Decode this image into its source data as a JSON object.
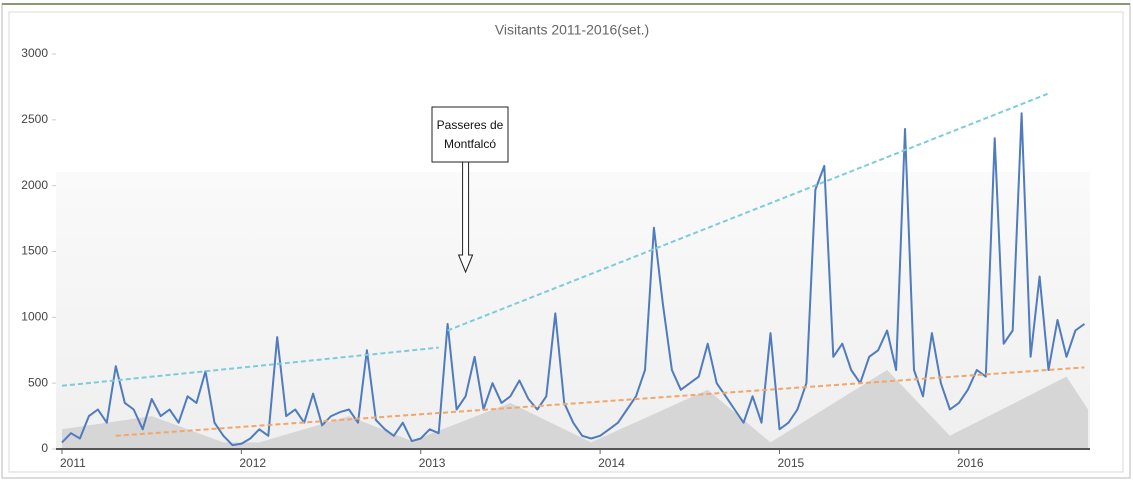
{
  "chart_data": {
    "type": "line",
    "title": "Visitants 2011-2016(set.)",
    "xlim": [
      2011,
      2016.72
    ],
    "xticks": [
      2011,
      2012,
      2013,
      2014,
      2015,
      2016
    ],
    "ylim": [
      0,
      3000
    ],
    "yticks": [
      0,
      500,
      1000,
      1500,
      2000,
      2500,
      3000
    ],
    "annotation": {
      "lines": [
        "Passeres de",
        "Montfalcó"
      ],
      "x": 2013.25
    },
    "series": [
      {
        "kind": "area",
        "color": "#d6d6d6",
        "x": [
          2011,
          2011.5,
          2011.9,
          2012.1,
          2012.6,
          2012.95,
          2013.5,
          2013.95,
          2014.6,
          2014.95,
          2015.6,
          2015.95,
          2016.6,
          2016.72
        ],
        "values": [
          150,
          250,
          50,
          50,
          250,
          60,
          350,
          50,
          450,
          50,
          600,
          100,
          550,
          300
        ]
      },
      {
        "kind": "line",
        "color": "#4f7bbf",
        "x": [
          2011.0,
          2011.05,
          2011.1,
          2011.15,
          2011.2,
          2011.25,
          2011.3,
          2011.35,
          2011.4,
          2011.45,
          2011.5,
          2011.55,
          2011.6,
          2011.65,
          2011.7,
          2011.75,
          2011.8,
          2011.85,
          2011.9,
          2011.95,
          2012.0,
          2012.05,
          2012.1,
          2012.15,
          2012.2,
          2012.25,
          2012.3,
          2012.35,
          2012.4,
          2012.45,
          2012.5,
          2012.55,
          2012.6,
          2012.65,
          2012.7,
          2012.75,
          2012.8,
          2012.85,
          2012.9,
          2012.95,
          2013.0,
          2013.05,
          2013.1,
          2013.15,
          2013.2,
          2013.25,
          2013.3,
          2013.35,
          2013.4,
          2013.45,
          2013.5,
          2013.55,
          2013.6,
          2013.65,
          2013.7,
          2013.75,
          2013.8,
          2013.85,
          2013.9,
          2013.95,
          2014.0,
          2014.05,
          2014.1,
          2014.15,
          2014.2,
          2014.25,
          2014.3,
          2014.35,
          2014.4,
          2014.45,
          2014.5,
          2014.55,
          2014.6,
          2014.65,
          2014.7,
          2014.75,
          2014.8,
          2014.85,
          2014.9,
          2014.95,
          2015.0,
          2015.05,
          2015.1,
          2015.15,
          2015.2,
          2015.25,
          2015.3,
          2015.35,
          2015.4,
          2015.45,
          2015.5,
          2015.55,
          2015.6,
          2015.65,
          2015.7,
          2015.75,
          2015.8,
          2015.85,
          2015.9,
          2015.95,
          2016.0,
          2016.05,
          2016.1,
          2016.15,
          2016.2,
          2016.25,
          2016.3,
          2016.35,
          2016.4,
          2016.45,
          2016.5,
          2016.55,
          2016.6,
          2016.65,
          2016.7
        ],
        "values": [
          50,
          120,
          80,
          250,
          300,
          200,
          630,
          350,
          300,
          150,
          380,
          250,
          300,
          200,
          400,
          350,
          590,
          200,
          100,
          30,
          40,
          80,
          150,
          100,
          850,
          250,
          300,
          200,
          420,
          180,
          250,
          280,
          300,
          200,
          750,
          220,
          150,
          100,
          200,
          60,
          80,
          150,
          120,
          950,
          300,
          400,
          700,
          300,
          500,
          350,
          400,
          520,
          380,
          300,
          400,
          1030,
          350,
          200,
          100,
          80,
          100,
          150,
          200,
          300,
          400,
          600,
          1680,
          1100,
          600,
          450,
          500,
          550,
          800,
          500,
          400,
          300,
          200,
          400,
          200,
          880,
          150,
          200,
          300,
          500,
          1970,
          2150,
          700,
          800,
          600,
          500,
          700,
          750,
          900,
          600,
          2430,
          600,
          400,
          880,
          500,
          300,
          350,
          450,
          600,
          550,
          2360,
          800,
          900,
          2550,
          700,
          1310,
          600,
          980,
          700,
          900,
          950
        ]
      },
      {
        "kind": "dashed",
        "color": "#7ecbdc",
        "x": [
          2011,
          2013.1
        ],
        "values": [
          480,
          770
        ]
      },
      {
        "kind": "dashed",
        "color": "#7ecbdc",
        "x": [
          2013.15,
          2016.5
        ],
        "values": [
          900,
          2700
        ]
      },
      {
        "kind": "dashed",
        "color": "#f2a66b",
        "x": [
          2011.3,
          2016.7
        ],
        "values": [
          100,
          620
        ]
      }
    ]
  }
}
